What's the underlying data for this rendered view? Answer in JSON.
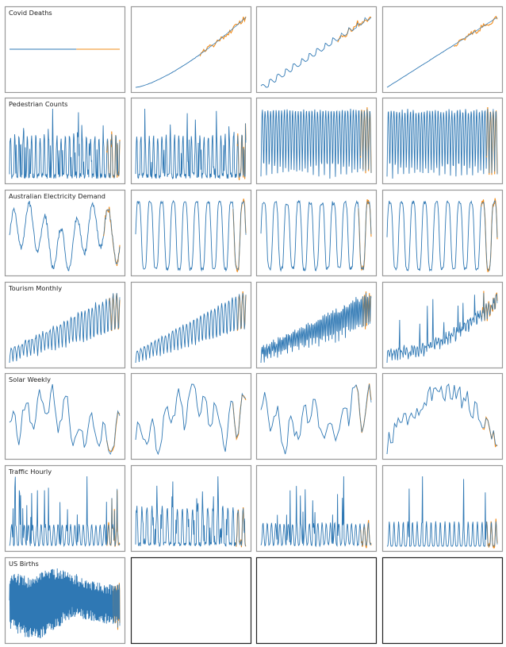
{
  "colors": {
    "history": "#2f78b4",
    "forecast": "#f28c1a",
    "panel_border_used": "#999999",
    "panel_border_empty": "#222222"
  },
  "chart_data": [
    {
      "row": 0,
      "col": 0,
      "type": "line",
      "title": "Covid Deaths",
      "pattern": "flat",
      "n": 90,
      "forecast_start": 0.6,
      "trend": 0,
      "noise": 0
    },
    {
      "row": 0,
      "col": 1,
      "type": "line",
      "title": "",
      "pattern": "trend_curve",
      "n": 90,
      "forecast_start": 0.58,
      "trend": 1,
      "noise": 0.01
    },
    {
      "row": 0,
      "col": 2,
      "type": "line",
      "title": "",
      "pattern": "staircase",
      "n": 90,
      "forecast_start": 0.7,
      "trend": 1,
      "noise": 0.02
    },
    {
      "row": 0,
      "col": 3,
      "type": "line",
      "title": "",
      "pattern": "trend_linear",
      "n": 90,
      "forecast_start": 0.6,
      "trend": 1,
      "noise": 0.01
    },
    {
      "row": 1,
      "col": 0,
      "type": "line",
      "title": "Pedestrian Counts",
      "pattern": "spiky_seasonal",
      "n": 300,
      "forecast_start": 0.88,
      "trend": 0,
      "noise": 0.2
    },
    {
      "row": 1,
      "col": 1,
      "type": "line",
      "title": "",
      "pattern": "spiky_seasonal",
      "n": 300,
      "forecast_start": 0.92,
      "trend": 0,
      "noise": 0.2
    },
    {
      "row": 1,
      "col": 2,
      "type": "line",
      "title": "",
      "pattern": "regular_seasonal",
      "n": 300,
      "forecast_start": 0.9,
      "trend": 0,
      "noise": 0.1
    },
    {
      "row": 1,
      "col": 3,
      "type": "line",
      "title": "",
      "pattern": "regular_seasonal",
      "n": 300,
      "forecast_start": 0.9,
      "trend": 0,
      "noise": 0.15
    },
    {
      "row": 2,
      "col": 0,
      "type": "line",
      "title": "Australian Electricity Demand",
      "pattern": "wave_bumps",
      "n": 200,
      "forecast_start": 0.85,
      "trend": 0,
      "noise": 0.15
    },
    {
      "row": 2,
      "col": 1,
      "type": "line",
      "title": "",
      "pattern": "wave_deep",
      "n": 200,
      "forecast_start": 0.88,
      "trend": 0,
      "noise": 0.1
    },
    {
      "row": 2,
      "col": 2,
      "type": "line",
      "title": "",
      "pattern": "wave_deep",
      "n": 200,
      "forecast_start": 0.88,
      "trend": 0,
      "noise": 0.15
    },
    {
      "row": 2,
      "col": 3,
      "type": "line",
      "title": "",
      "pattern": "wave_deep",
      "n": 200,
      "forecast_start": 0.85,
      "trend": 0,
      "noise": 0.1
    },
    {
      "row": 3,
      "col": 0,
      "type": "line",
      "title": "Tourism Monthly",
      "pattern": "seasonal_trend",
      "n": 220,
      "forecast_start": 0.9,
      "trend": 0.5,
      "noise": 0.2
    },
    {
      "row": 3,
      "col": 1,
      "type": "line",
      "title": "",
      "pattern": "seasonal_trend",
      "n": 220,
      "forecast_start": 0.92,
      "trend": 0.6,
      "noise": 0.1
    },
    {
      "row": 3,
      "col": 2,
      "type": "line",
      "title": "",
      "pattern": "seasonal_trend_dense",
      "n": 300,
      "forecast_start": 0.92,
      "trend": 0.6,
      "noise": 0.2
    },
    {
      "row": 3,
      "col": 3,
      "type": "line",
      "title": "",
      "pattern": "noisy_trend",
      "n": 220,
      "forecast_start": 0.85,
      "trend": 0.5,
      "noise": 0.25
    },
    {
      "row": 4,
      "col": 0,
      "type": "line",
      "title": "Solar Weekly",
      "pattern": "random_walk",
      "n": 60,
      "forecast_start": 0.88,
      "trend": 0,
      "noise": 0.3
    },
    {
      "row": 4,
      "col": 1,
      "type": "line",
      "title": "",
      "pattern": "random_walk",
      "n": 60,
      "forecast_start": 0.88,
      "trend": 0,
      "noise": 0.3
    },
    {
      "row": 4,
      "col": 2,
      "type": "line",
      "title": "",
      "pattern": "random_walk",
      "n": 60,
      "forecast_start": 0.85,
      "trend": 0,
      "noise": 0.3
    },
    {
      "row": 4,
      "col": 3,
      "type": "line",
      "title": "",
      "pattern": "hump",
      "n": 60,
      "forecast_start": 0.85,
      "trend": 0,
      "noise": 0.3
    },
    {
      "row": 5,
      "col": 0,
      "type": "line",
      "title": "Traffic Hourly",
      "pattern": "peaks",
      "n": 250,
      "forecast_start": 0.88,
      "trend": 0,
      "noise": 0.1
    },
    {
      "row": 5,
      "col": 1,
      "type": "line",
      "title": "",
      "pattern": "spiky_seasonal",
      "n": 250,
      "forecast_start": 0.9,
      "trend": 0,
      "noise": 0.15
    },
    {
      "row": 5,
      "col": 2,
      "type": "line",
      "title": "",
      "pattern": "peaks",
      "n": 250,
      "forecast_start": 0.9,
      "trend": 0,
      "noise": 0.15
    },
    {
      "row": 5,
      "col": 3,
      "type": "line",
      "title": "",
      "pattern": "peaks_sparse",
      "n": 250,
      "forecast_start": 0.9,
      "trend": 0,
      "noise": 0.1
    },
    {
      "row": 6,
      "col": 0,
      "type": "line",
      "title": "US Births",
      "pattern": "dense_band",
      "n": 500,
      "forecast_start": 0.94,
      "trend": 0,
      "noise": 0.3
    },
    {
      "row": 6,
      "col": 1,
      "type": "empty",
      "title": ""
    },
    {
      "row": 6,
      "col": 2,
      "type": "empty",
      "title": ""
    },
    {
      "row": 6,
      "col": 3,
      "type": "empty",
      "title": ""
    }
  ]
}
